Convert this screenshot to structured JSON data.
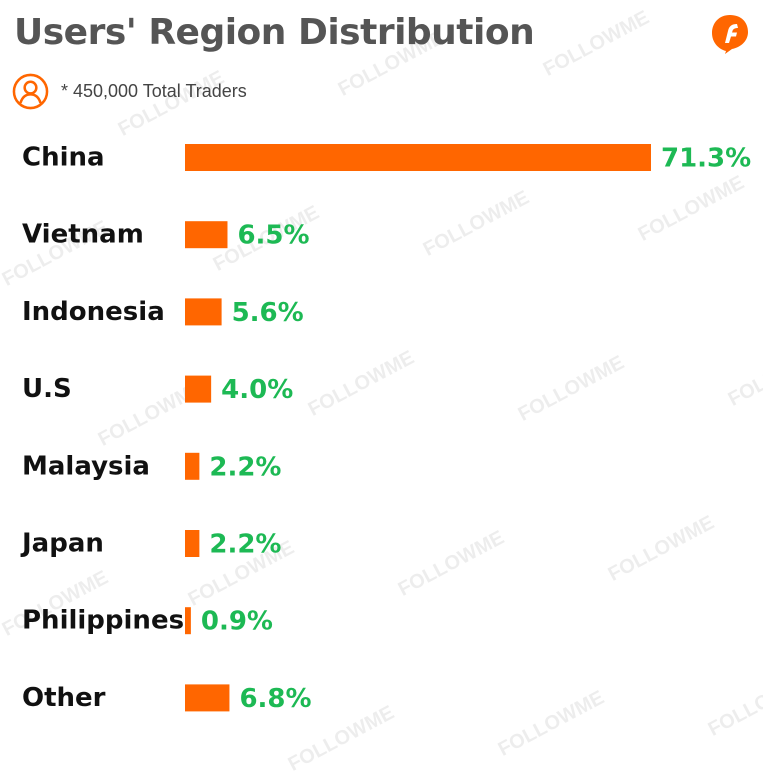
{
  "header": {
    "title": "Users' Region Distribution",
    "subtitle": "* 450,000 Total Traders",
    "logo_icon": "followme-logo-icon",
    "user_icon": "user-icon"
  },
  "watermark": "FOLLOWME",
  "colors": {
    "bar": "#FF6600",
    "value_label": "#1DB954",
    "category_label": "#111111",
    "title": "#555555",
    "accent": "#FF6600"
  },
  "chart_data": {
    "type": "bar",
    "orientation": "horizontal",
    "title": "Users' Region Distribution",
    "subtitle": "* 450,000 Total Traders",
    "categories": [
      "China",
      "Vietnam",
      "Indonesia",
      "U.S",
      "Malaysia",
      "Japan",
      "Philippines",
      "Other"
    ],
    "values": [
      71.3,
      6.5,
      5.6,
      4.0,
      2.2,
      2.2,
      0.9,
      6.8
    ],
    "value_labels": [
      "71.3%",
      "6.5%",
      "5.6%",
      "4.0%",
      "2.2%",
      "2.2%",
      "0.9%",
      "6.8%"
    ],
    "unit": "%",
    "xlabel": "",
    "ylabel": "",
    "grid": false,
    "legend": "none"
  }
}
